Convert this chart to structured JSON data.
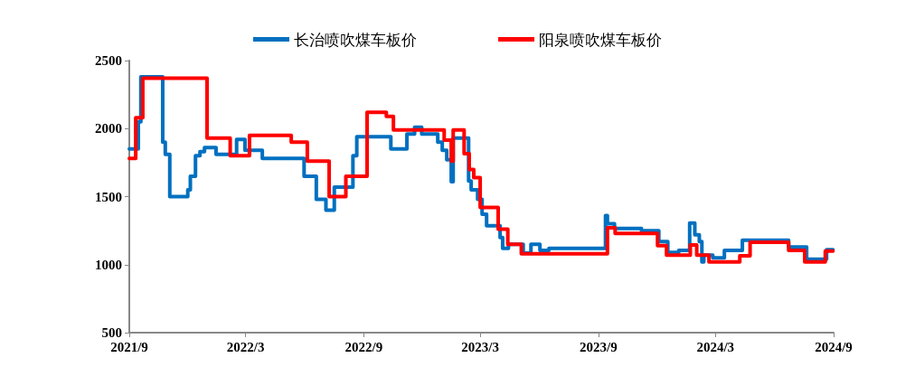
{
  "chart_data": {
    "type": "step",
    "legend": "top",
    "grid": false,
    "marker": "none",
    "line_style": "solid",
    "xlim": [
      "2021-09",
      "2024-09"
    ],
    "xticks": [
      {
        "value": "2021-09",
        "label": "2021/9"
      },
      {
        "value": "2022-03",
        "label": "2022/3"
      },
      {
        "value": "2022-09",
        "label": "2022/9"
      },
      {
        "value": "2023-03",
        "label": "2023/3"
      },
      {
        "value": "2023-09",
        "label": "2023/9"
      },
      {
        "value": "2024-03",
        "label": "2024/3"
      },
      {
        "value": "2024-09",
        "label": "2024/9"
      }
    ],
    "ylim": [
      500,
      2500
    ],
    "yticks": [
      500,
      1000,
      1500,
      2000,
      2500
    ],
    "series": [
      {
        "name": "长治喷吹煤车板价",
        "color": "#0070c0",
        "x": [
          "2021-09-01",
          "2021-09-15",
          "2021-09-19",
          "2021-10-23",
          "2021-10-27",
          "2021-11-03",
          "2021-12-01",
          "2021-12-05",
          "2021-12-13",
          "2021-12-20",
          "2021-12-27",
          "2022-01-14",
          "2022-02-15",
          "2022-02-28",
          "2022-03-27",
          "2022-05-31",
          "2022-06-19",
          "2022-07-04",
          "2022-07-17",
          "2022-08-15",
          "2022-08-21",
          "2022-10-13",
          "2022-11-07",
          "2022-11-19",
          "2022-11-30",
          "2022-12-25",
          "2023-01-01",
          "2023-01-08",
          "2023-01-15",
          "2023-01-18",
          "2023-02-11",
          "2023-02-15",
          "2023-02-25",
          "2023-03-04",
          "2023-03-11",
          "2023-04-01",
          "2023-04-05",
          "2023-04-14",
          "2023-05-07",
          "2023-05-19",
          "2023-06-02",
          "2023-06-16",
          "2023-09-12",
          "2023-09-15",
          "2023-09-26",
          "2023-11-07",
          "2023-12-04",
          "2023-12-18",
          "2024-01-04",
          "2024-01-21",
          "2024-01-29",
          "2024-02-05",
          "2024-02-09",
          "2024-02-12",
          "2024-02-26",
          "2024-03-15",
          "2024-04-12",
          "2024-06-23",
          "2024-07-21",
          "2024-08-21",
          "2024-08-31"
        ],
        "values": [
          1850,
          2050,
          2380,
          1900,
          1810,
          1500,
          1550,
          1650,
          1800,
          1830,
          1860,
          1810,
          1920,
          1840,
          1780,
          1650,
          1480,
          1400,
          1570,
          1800,
          1940,
          1850,
          1960,
          2010,
          1960,
          1900,
          1840,
          1770,
          1610,
          1930,
          1615,
          1550,
          1480,
          1370,
          1285,
          1200,
          1120,
          1150,
          1085,
          1150,
          1105,
          1120,
          1360,
          1300,
          1265,
          1250,
          1170,
          1090,
          1105,
          1305,
          1220,
          1170,
          1020,
          1070,
          1050,
          1105,
          1180,
          1130,
          1040,
          1110,
          1110
        ]
      },
      {
        "name": "阳泉喷吹煤车板价",
        "color": "#ff0000",
        "x": [
          "2021-09-01",
          "2021-09-11",
          "2021-09-22",
          "2021-12-31",
          "2022-02-05",
          "2022-03-07",
          "2022-05-11",
          "2022-06-05",
          "2022-07-09",
          "2022-08-04",
          "2022-09-06",
          "2022-10-06",
          "2022-10-17",
          "2023-01-04",
          "2023-01-15",
          "2023-01-18",
          "2023-02-04",
          "2023-02-12",
          "2023-02-19",
          "2023-03-01",
          "2023-03-29",
          "2023-04-13",
          "2023-05-04",
          "2023-09-15",
          "2023-09-27",
          "2023-12-02",
          "2023-12-16",
          "2024-01-22",
          "2024-02-01",
          "2024-02-20",
          "2024-04-08",
          "2024-04-24",
          "2024-06-23",
          "2024-07-18",
          "2024-08-19",
          "2024-08-31"
        ],
        "values": [
          1780,
          2080,
          2370,
          1930,
          1800,
          1950,
          1900,
          1760,
          1500,
          1650,
          2120,
          2090,
          1990,
          1915,
          1760,
          1990,
          1815,
          1700,
          1640,
          1420,
          1260,
          1150,
          1080,
          1270,
          1230,
          1140,
          1070,
          1145,
          1070,
          1020,
          1065,
          1165,
          1105,
          1020,
          1100,
          1100
        ]
      }
    ]
  }
}
